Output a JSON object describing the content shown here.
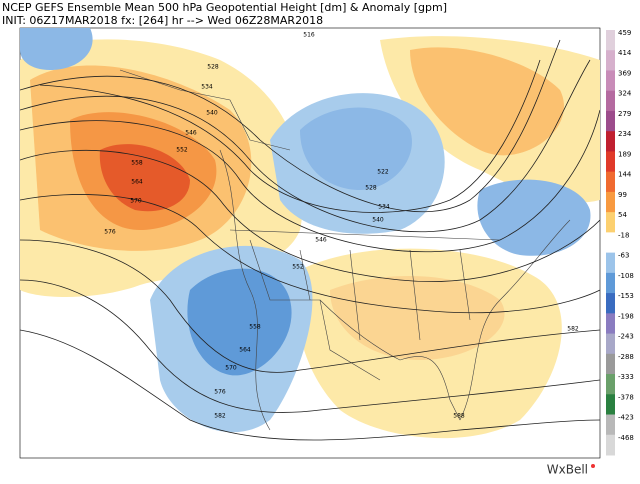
{
  "header": {
    "line1": "NCEP GEFS Ensemble Mean 500 hPa Geopotential Height [dm] & Anomaly [gpm]",
    "line2": "INIT: 06Z17MAR2018 fx: [264] hr --> Wed 06Z28MAR2018"
  },
  "colorbar": {
    "labels": [
      "459",
      "414",
      "369",
      "324",
      "279",
      "234",
      "189",
      "144",
      "99",
      "54",
      "-18",
      "-63",
      "-108",
      "-153",
      "-198",
      "-243",
      "-288",
      "-333",
      "-378",
      "-423",
      "-468"
    ]
  },
  "contour_labels": [
    "516",
    "528",
    "534",
    "540",
    "546",
    "552",
    "558",
    "564",
    "570",
    "576",
    "522",
    "528",
    "534",
    "540",
    "546",
    "552",
    "558",
    "564",
    "570",
    "576",
    "582",
    "582",
    "588"
  ],
  "logo": "WxBell"
}
